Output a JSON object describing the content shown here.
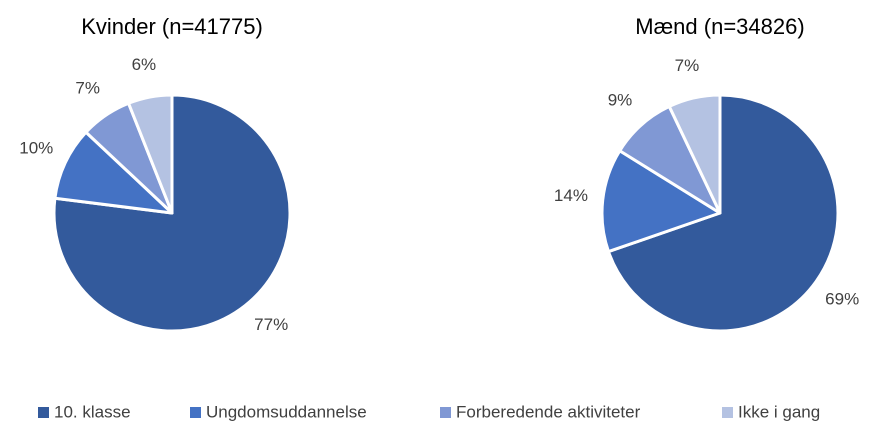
{
  "chart_data": [
    {
      "type": "pie",
      "title": "Kvinder (n=41775)",
      "values": [
        77,
        10,
        7,
        6
      ],
      "value_labels": [
        "77%",
        "10%",
        "7%",
        "6%"
      ]
    },
    {
      "type": "pie",
      "title": "Mænd (n=34826)",
      "values": [
        69,
        14,
        9,
        7
      ],
      "value_labels": [
        "69%",
        "14%",
        "9%",
        "7%"
      ]
    }
  ],
  "legend": {
    "categories": [
      "10. klasse",
      "Ungdomsuddannelse",
      "Forberedende aktiviteter",
      "Ikke i gang"
    ],
    "colors": [
      "#335a9c",
      "#4472c4",
      "#8098d4",
      "#b4c2e2"
    ]
  }
}
